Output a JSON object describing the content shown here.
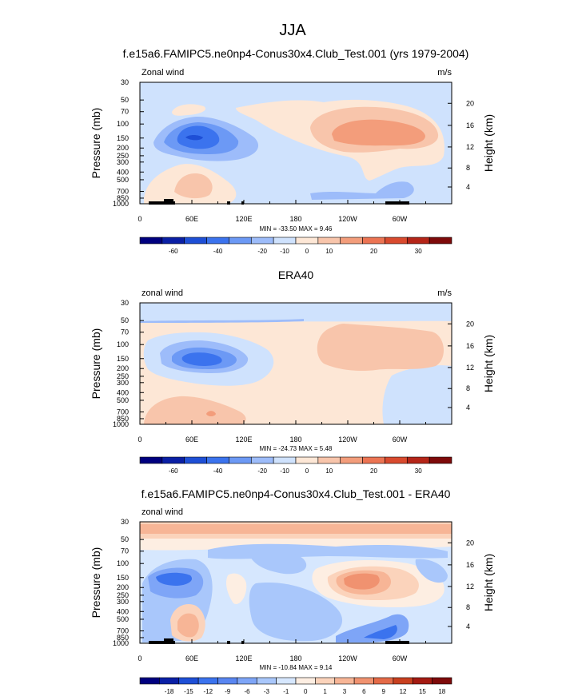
{
  "main_title": "JJA",
  "panels": [
    {
      "title": "f.e15a6.FAMIPC5.ne0np4-Conus30x4.Club_Test.001 (yrs 1979-2004)",
      "variable": "Zonal wind",
      "units": "m/s",
      "stats": "MIN = -33.50   MAX =   9.46"
    },
    {
      "title": "ERA40",
      "variable": "zonal wind",
      "units": "m/s",
      "stats": "MIN = -24.73   MAX =   5.48"
    },
    {
      "title": "f.e15a6.FAMIPC5.ne0np4-Conus30x4.Club_Test.001 - ERA40",
      "variable": "zonal wind",
      "units": "",
      "stats": "MIN = -10.84   MAX =   9.14"
    }
  ],
  "colorbars": [
    {
      "colors": [
        "#00007f",
        "#0a1fa5",
        "#1e4fd6",
        "#3b73ee",
        "#6c99f5",
        "#9dbcfa",
        "#cfe2fd",
        "#fde7d6",
        "#f8c5ab",
        "#f39d7b",
        "#ec7453",
        "#d94a2e",
        "#b52518",
        "#7e0a0a"
      ],
      "labels": [
        {
          "text": "-60",
          "idx": 1
        },
        {
          "text": "-40",
          "idx": 3
        },
        {
          "text": "-20",
          "idx": 5
        },
        {
          "text": "-10",
          "idx": 6
        },
        {
          "text": "0",
          "idx": 7
        },
        {
          "text": "10",
          "idx": 8
        },
        {
          "text": "20",
          "idx": 10
        },
        {
          "text": "30",
          "idx": 12
        }
      ]
    },
    {
      "colors": [
        "#00007f",
        "#0a1fa5",
        "#1e4fd6",
        "#3b73ee",
        "#6c99f5",
        "#9dbcfa",
        "#cfe2fd",
        "#fde7d6",
        "#f8c5ab",
        "#f39d7b",
        "#ec7453",
        "#d94a2e",
        "#b52518",
        "#7e0a0a"
      ],
      "labels": [
        {
          "text": "-60",
          "idx": 1
        },
        {
          "text": "-40",
          "idx": 3
        },
        {
          "text": "-20",
          "idx": 5
        },
        {
          "text": "-10",
          "idx": 6
        },
        {
          "text": "0",
          "idx": 7
        },
        {
          "text": "10",
          "idx": 8
        },
        {
          "text": "20",
          "idx": 10
        },
        {
          "text": "30",
          "idx": 12
        }
      ]
    },
    {
      "colors": [
        "#00007f",
        "#0a1fa5",
        "#1e4fd6",
        "#3b73ee",
        "#5986f1",
        "#7ea5f7",
        "#a9c7fb",
        "#d6e7fe",
        "#fdeee2",
        "#fbd3bb",
        "#f7b596",
        "#f09270",
        "#e46a47",
        "#c8401f",
        "#a41a12",
        "#7e0a0a"
      ],
      "labels": [
        {
          "text": "-18",
          "idx": 1
        },
        {
          "text": "-15",
          "idx": 2
        },
        {
          "text": "-12",
          "idx": 3
        },
        {
          "text": "-9",
          "idx": 4
        },
        {
          "text": "-6",
          "idx": 5
        },
        {
          "text": "-3",
          "idx": 6
        },
        {
          "text": "-1",
          "idx": 7
        },
        {
          "text": "0",
          "idx": 8
        },
        {
          "text": "1",
          "idx": 9
        },
        {
          "text": "3",
          "idx": 10
        },
        {
          "text": "6",
          "idx": 11
        },
        {
          "text": "9",
          "idx": 12
        },
        {
          "text": "12",
          "idx": 13
        },
        {
          "text": "15",
          "idx": 14
        },
        {
          "text": "18",
          "idx": 15
        }
      ]
    }
  ],
  "chart_data": {
    "type": "heatmap",
    "x_ticks": [
      "0",
      "60E",
      "120E",
      "180",
      "120W",
      "60W"
    ],
    "x_tick_lons": [
      0,
      60,
      120,
      180,
      240,
      300
    ],
    "x_range": [
      0,
      360
    ],
    "y_left_label": "Pressure (mb)",
    "y_left_ticks": [
      30,
      50,
      70,
      100,
      150,
      200,
      250,
      300,
      400,
      500,
      700,
      850,
      1000
    ],
    "y_range_mb": [
      30,
      1000
    ],
    "y_scale": "log",
    "y_right_label": "Height (km)",
    "y_right_ticks": [
      4,
      8,
      12,
      16,
      20
    ],
    "y_right_tick_mb": [
      616,
      356,
      194,
      104,
      55
    ]
  }
}
